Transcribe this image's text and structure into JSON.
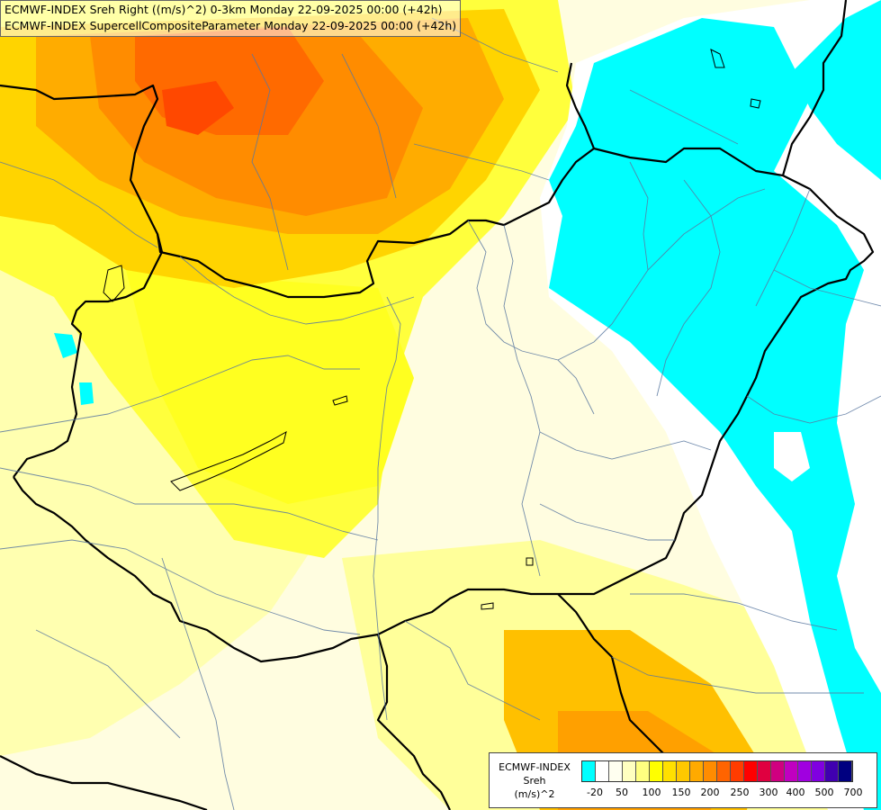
{
  "header": {
    "line1": "ECMWF-INDEX Sreh Right ((m/s)^2) 0-3km Monday 22-09-2025 00:00 (+42h)",
    "line2": "ECMWF-INDEX SupercellCompositeParameter Monday 22-09-2025 00:00 (+42h)"
  },
  "legend": {
    "title_line1": "ECMWF-INDEX",
    "title_line2": "Sreh",
    "title_line3": "(m/s)^2",
    "colors": [
      "#00ffff",
      "#ffffff",
      "#fffff0",
      "#ffffc0",
      "#ffff80",
      "#ffff00",
      "#ffe000",
      "#ffc800",
      "#ffaa00",
      "#ff8c00",
      "#ff6400",
      "#ff3c00",
      "#ff0000",
      "#e00040",
      "#d00080",
      "#c000c0",
      "#a000e0",
      "#8000e0",
      "#4000b0",
      "#000080"
    ],
    "ticks": [
      "-20",
      "50",
      "100",
      "150",
      "200",
      "250",
      "300",
      "400",
      "500",
      "700"
    ]
  }
}
